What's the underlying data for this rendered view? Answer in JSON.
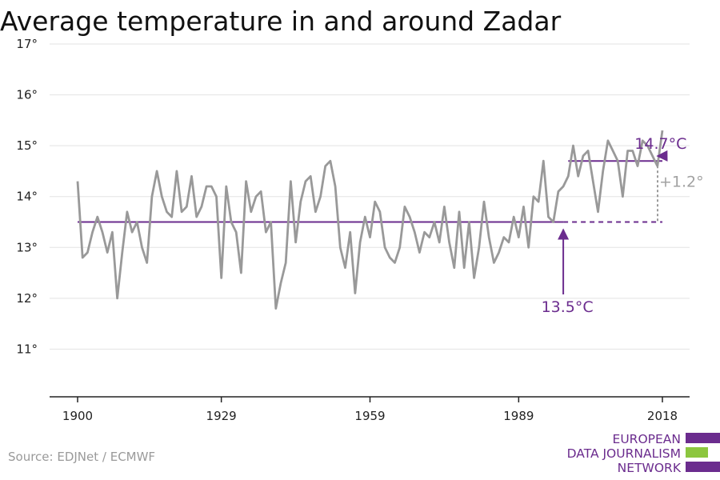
{
  "chart_data": {
    "type": "line",
    "title": "Average temperature in and around Zadar",
    "xlabel": "",
    "ylabel": "",
    "xlim": [
      1900,
      2018
    ],
    "ylim": [
      10,
      17
    ],
    "y_ticks": [
      {
        "value": 11,
        "label": "11°"
      },
      {
        "value": 12,
        "label": "12°"
      },
      {
        "value": 13,
        "label": "13°"
      },
      {
        "value": 14,
        "label": "14°"
      },
      {
        "value": 15,
        "label": "15°"
      },
      {
        "value": 16,
        "label": "16°"
      },
      {
        "value": 17,
        "label": "17°"
      }
    ],
    "x_ticks": [
      {
        "value": 1900,
        "label": "1900"
      },
      {
        "value": 1929,
        "label": "1929"
      },
      {
        "value": 1959,
        "label": "1959"
      },
      {
        "value": 1989,
        "label": "1989"
      },
      {
        "value": 2018,
        "label": "2018"
      }
    ],
    "grid": true,
    "line_color": "#999999",
    "accent_color": "#6b2c8e",
    "series": [
      {
        "x": [
          1900,
          1901,
          1902,
          1903,
          1904,
          1905,
          1906,
          1907,
          1908,
          1909,
          1910,
          1911,
          1912,
          1913,
          1914,
          1915,
          1916,
          1917,
          1918,
          1919,
          1920,
          1921,
          1922,
          1923,
          1924,
          1925,
          1926,
          1927,
          1928,
          1929,
          1930,
          1931,
          1932,
          1933,
          1934,
          1935,
          1936,
          1937,
          1938,
          1939,
          1940,
          1941,
          1942,
          1943,
          1944,
          1945,
          1946,
          1947,
          1948,
          1949,
          1950,
          1951,
          1952,
          1953,
          1954,
          1955,
          1956,
          1957,
          1958,
          1959,
          1960,
          1961,
          1962,
          1963,
          1964,
          1965,
          1966,
          1967,
          1968,
          1969,
          1970,
          1971,
          1972,
          1973,
          1974,
          1975,
          1976,
          1977,
          1978,
          1979,
          1980,
          1981,
          1982,
          1983,
          1984,
          1985,
          1986,
          1987,
          1988,
          1989,
          1990,
          1991,
          1992,
          1993,
          1994,
          1995,
          1996,
          1997,
          1998,
          1999,
          2000,
          2001,
          2002,
          2003,
          2004,
          2005,
          2006,
          2007,
          2008,
          2009,
          2010,
          2011,
          2012,
          2013,
          2014,
          2015,
          2016,
          2017,
          2018
        ],
        "values": [
          14.3,
          12.8,
          12.9,
          13.3,
          13.6,
          13.3,
          12.9,
          13.3,
          12.0,
          12.9,
          13.7,
          13.3,
          13.5,
          13.0,
          12.7,
          14.0,
          14.5,
          14.0,
          13.7,
          13.6,
          14.5,
          13.7,
          13.8,
          14.4,
          13.6,
          13.8,
          14.2,
          14.2,
          14.0,
          12.4,
          14.2,
          13.5,
          13.3,
          12.5,
          14.3,
          13.7,
          14.0,
          14.1,
          13.3,
          13.5,
          11.8,
          12.3,
          12.7,
          14.3,
          13.1,
          13.9,
          14.3,
          14.4,
          13.7,
          14.0,
          14.6,
          14.7,
          14.2,
          13.0,
          12.6,
          13.3,
          12.1,
          13.1,
          13.6,
          13.2,
          13.9,
          13.7,
          13.0,
          12.8,
          12.7,
          13.0,
          13.8,
          13.6,
          13.3,
          12.9,
          13.3,
          13.2,
          13.5,
          13.1,
          13.8,
          13.1,
          12.6,
          13.7,
          12.6,
          13.5,
          12.4,
          13.0,
          13.9,
          13.2,
          12.7,
          12.9,
          13.2,
          13.1,
          13.6,
          13.2,
          13.8,
          13.0,
          14.0,
          13.9,
          14.7,
          13.6,
          13.5,
          14.1,
          14.2,
          14.4,
          15.0,
          14.4,
          14.8,
          14.9,
          14.3,
          13.7,
          14.5,
          15.1,
          14.9,
          14.7,
          14.0,
          14.9,
          14.9,
          14.6,
          15.1,
          15.0,
          14.8,
          14.6,
          15.3
        ]
      }
    ],
    "reference_lines": [
      {
        "value": 13.5,
        "x_start": 1900,
        "x_end": 1998,
        "style": "solid"
      },
      {
        "value": 13.5,
        "x_start": 1998,
        "x_end": 2018,
        "style": "dashed"
      },
      {
        "value": 14.7,
        "x_start": 1999,
        "x_end": 2018,
        "style": "solid"
      }
    ],
    "annotations": [
      {
        "label": "14.7°C",
        "target_x": 2017,
        "target_y": 14.75
      },
      {
        "label": "13.5°C",
        "target_x": 1998,
        "target_y": 13.4
      },
      {
        "label": "+1.2°",
        "x": 2018,
        "from": 13.5,
        "to": 14.7
      }
    ],
    "source": "Source: EDJNet / ECMWF"
  },
  "logo": {
    "lines": [
      "EUROPEAN",
      "DATA JOURNALISM",
      "NETWORK"
    ],
    "colors": [
      "#6b2c8e",
      "#8cc63f",
      "#6b2c8e"
    ]
  }
}
